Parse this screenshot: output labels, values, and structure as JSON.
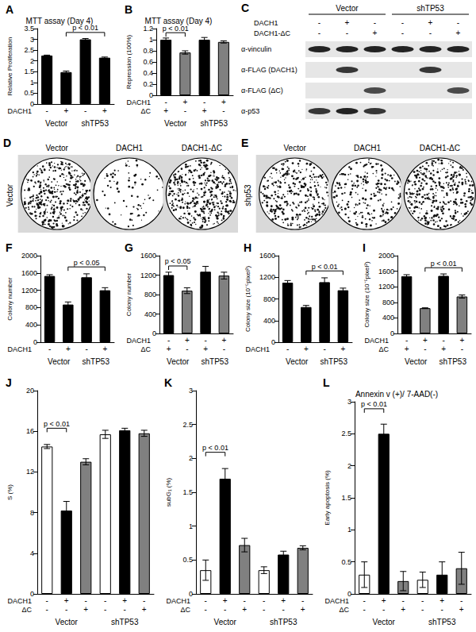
{
  "chart_data": [
    {
      "type": "bar",
      "title": "A",
      "subtitle": "MTT assay (Day 4)",
      "ylabel": "Relative Proliferation",
      "x_rows": [
        {
          "label": "DACH1",
          "values": [
            "-",
            "+",
            "-",
            "+"
          ]
        }
      ],
      "groups": [
        "Vector",
        "shTP53"
      ],
      "values": [
        2.25,
        1.48,
        3.0,
        2.15
      ],
      "errors": [
        0.02,
        0.05,
        0.04,
        0.03
      ],
      "colors": [
        "#000000",
        "#000000",
        "#000000",
        "#000000"
      ],
      "ylim": [
        0,
        3.5
      ],
      "yticks": [
        0,
        0.5,
        1,
        1.5,
        2,
        2.5,
        3,
        3.5
      ],
      "annotations": [
        {
          "text": "p < 0.01",
          "from": 1,
          "to": 3
        }
      ]
    },
    {
      "type": "bar",
      "title": "B",
      "subtitle": "MTT assay (Day 4)",
      "ylabel": "Repression (100%)",
      "x_rows": [
        {
          "label": "DACH1",
          "values": [
            "-",
            "+",
            "-",
            "+"
          ]
        },
        {
          "label": "ΔC",
          "values": [
            "+",
            "-",
            "+",
            "-"
          ]
        }
      ],
      "groups": [
        "Vector",
        "shTP53"
      ],
      "values": [
        1.0,
        0.77,
        1.0,
        0.96
      ],
      "errors": [
        0.03,
        0.03,
        0.04,
        0.02
      ],
      "colors": [
        "#000000",
        "#808080",
        "#000000",
        "#808080"
      ],
      "ylim": [
        0,
        1.2
      ],
      "yticks": [
        0,
        0.2,
        0.4,
        0.6,
        0.8,
        1,
        1.2
      ],
      "annotations": [
        {
          "text": "p < 0.01",
          "from": 0,
          "to": 1
        }
      ]
    },
    {
      "type": "bar",
      "title": "F",
      "ylabel": "Colony number",
      "x_rows": [
        {
          "label": "DACH1",
          "values": [
            "-",
            "+",
            "-",
            "+"
          ]
        }
      ],
      "groups": [
        "Vector",
        "shTP53"
      ],
      "values": [
        1530,
        870,
        1500,
        1200
      ],
      "errors": [
        30,
        60,
        80,
        60
      ],
      "colors": [
        "#000000",
        "#000000",
        "#000000",
        "#000000"
      ],
      "ylim": [
        0,
        2000
      ],
      "yticks": [
        0,
        400,
        800,
        1200,
        1600,
        2000
      ],
      "annotations": [
        {
          "text": "p < 0.05",
          "from": 1,
          "to": 3
        }
      ]
    },
    {
      "type": "bar",
      "title": "G",
      "ylabel": "Colony number",
      "x_rows": [
        {
          "label": "DACH1",
          "values": [
            "-",
            "+",
            "-",
            "+"
          ]
        },
        {
          "label": "ΔC",
          "values": [
            "+",
            "-",
            "+",
            "-"
          ]
        }
      ],
      "groups": [
        "Vector",
        "shTP53"
      ],
      "values": [
        1200,
        880,
        1270,
        1190
      ],
      "errors": [
        60,
        60,
        110,
        70
      ],
      "colors": [
        "#000000",
        "#808080",
        "#000000",
        "#808080"
      ],
      "ylim": [
        0,
        1600
      ],
      "yticks": [
        0,
        400,
        800,
        1200,
        1600
      ],
      "annotations": [
        {
          "text": "p < 0.05",
          "from": 0,
          "to": 1
        }
      ]
    },
    {
      "type": "bar",
      "title": "H",
      "ylabel": "Colony size (10⁻⁵pixel²)",
      "x_rows": [
        {
          "label": "DACH1",
          "values": [
            "-",
            "+",
            "-",
            "+"
          ]
        }
      ],
      "groups": [
        "Vector",
        "shTP53"
      ],
      "values": [
        1100,
        650,
        1110,
        960
      ],
      "errors": [
        40,
        30,
        80,
        40
      ],
      "colors": [
        "#000000",
        "#000000",
        "#000000",
        "#000000"
      ],
      "ylim": [
        0,
        1600
      ],
      "yticks": [
        0,
        400,
        800,
        1200,
        1600
      ],
      "annotations": [
        {
          "text": "p < 0.01",
          "from": 1,
          "to": 3
        }
      ]
    },
    {
      "type": "bar",
      "title": "I",
      "ylabel": "Colony size (10⁻⁵pixel²)",
      "x_rows": [
        {
          "label": "DACH1",
          "values": [
            "-",
            "+",
            "-",
            "+"
          ]
        },
        {
          "label": "ΔC",
          "values": [
            "+",
            "-",
            "+",
            "-"
          ]
        }
      ],
      "groups": [
        "Vector",
        "shTP53"
      ],
      "values": [
        1470,
        650,
        1480,
        950
      ],
      "errors": [
        40,
        10,
        50,
        40
      ],
      "colors": [
        "#000000",
        "#808080",
        "#000000",
        "#808080"
      ],
      "ylim": [
        0,
        2000
      ],
      "yticks": [
        0,
        400,
        800,
        1200,
        1600,
        2000
      ],
      "annotations": [
        {
          "text": "p < 0.01",
          "from": 1,
          "to": 3
        }
      ]
    },
    {
      "type": "bar",
      "title": "J",
      "ylabel": "S (%)",
      "x_rows": [
        {
          "label": "DACH1",
          "values": [
            "-",
            "+",
            "-",
            "-",
            "+",
            "-"
          ]
        },
        {
          "label": "ΔC",
          "values": [
            "-",
            "-",
            "+",
            "-",
            "-",
            "+"
          ]
        }
      ],
      "groups": [
        "Vector",
        "shTP53"
      ],
      "values": [
        14.5,
        8.2,
        13.0,
        15.7,
        16.1,
        15.8
      ],
      "errors": [
        0.2,
        0.9,
        0.3,
        0.4,
        0.2,
        0.3
      ],
      "colors": [
        "#ffffff",
        "#000000",
        "#808080",
        "#ffffff",
        "#000000",
        "#808080"
      ],
      "ylim": [
        0,
        20
      ],
      "yticks": [
        0,
        4,
        8,
        12,
        16,
        20
      ],
      "annotations": [
        {
          "text": "p < 0.01",
          "from": 0,
          "to": 1
        }
      ]
    },
    {
      "type": "bar",
      "title": "K",
      "ylabel": "subG₁ (%)",
      "x_rows": [
        {
          "label": "DACH1",
          "values": [
            "-",
            "+",
            "-",
            "-",
            "+",
            "-"
          ]
        },
        {
          "label": "ΔC",
          "values": [
            "-",
            "-",
            "+",
            "-",
            "-",
            "+"
          ]
        }
      ],
      "groups": [
        "Vector",
        "shTP53"
      ],
      "values": [
        0.35,
        1.7,
        0.72,
        0.35,
        0.58,
        0.68
      ],
      "errors": [
        0.15,
        0.15,
        0.1,
        0.05,
        0.05,
        0.03
      ],
      "colors": [
        "#ffffff",
        "#000000",
        "#808080",
        "#ffffff",
        "#000000",
        "#808080"
      ],
      "ylim": [
        0,
        3
      ],
      "yticks": [
        0,
        0.5,
        1,
        1.5,
        2,
        2.5,
        3
      ],
      "annotations": [
        {
          "text": "p < 0.01",
          "from": 0,
          "to": 1
        }
      ]
    },
    {
      "type": "bar",
      "title": "L",
      "subtitle": "Annexin v (+)/ 7-AAD(-)",
      "ylabel": "Early apoptosis (%)",
      "x_rows": [
        {
          "label": "DACH1",
          "values": [
            "-",
            "+",
            "-",
            "-",
            "+",
            "-"
          ]
        },
        {
          "label": "ΔC",
          "values": [
            "-",
            "-",
            "+",
            "-",
            "-",
            "+"
          ]
        }
      ],
      "groups": [
        "Vector",
        "shTP53"
      ],
      "values": [
        0.3,
        2.5,
        0.2,
        0.22,
        0.3,
        0.4
      ],
      "errors": [
        0.2,
        0.15,
        0.15,
        0.12,
        0.2,
        0.25
      ],
      "colors": [
        "#ffffff",
        "#000000",
        "#808080",
        "#ffffff",
        "#000000",
        "#808080"
      ],
      "ylim": [
        0,
        3
      ],
      "yticks": [
        0,
        0.5,
        1,
        1.5,
        2,
        2.5,
        3
      ],
      "annotations": [
        {
          "text": "p < 0.01",
          "from": 0,
          "to": 1
        }
      ]
    }
  ],
  "blot": {
    "title": "C",
    "groups": [
      "Vector",
      "shTP53"
    ],
    "conditions": [
      {
        "label": "DACH1",
        "values": [
          "-",
          "+",
          "-",
          "-",
          "+",
          "-"
        ]
      },
      {
        "label": "DACH1-ΔC",
        "values": [
          "-",
          "-",
          "+",
          "-",
          "-",
          "+"
        ]
      }
    ],
    "bands": [
      {
        "label": "α-vinculin",
        "intensity": [
          1,
          1,
          1,
          1,
          1,
          1
        ]
      },
      {
        "label": "α-FLAG (DACH1)",
        "intensity": [
          0,
          0.9,
          0,
          0,
          0.9,
          0
        ]
      },
      {
        "label": "α-FLAG (ΔC)",
        "intensity": [
          0,
          0,
          0.8,
          0,
          0,
          0.8
        ]
      },
      {
        "label": "α-p53",
        "intensity": [
          0.9,
          1,
          0.9,
          0,
          0,
          0
        ]
      }
    ]
  },
  "colony_plates": [
    {
      "title": "D",
      "row_label": "Vector",
      "plates": [
        {
          "label": "Vector",
          "colonies": 380
        },
        {
          "label": "DACH1",
          "colonies": 80
        },
        {
          "label": "DACH1-ΔC",
          "colonies": 420
        }
      ]
    },
    {
      "title": "E",
      "row_label": "shp53",
      "plates": [
        {
          "label": "Vector",
          "colonies": 330
        },
        {
          "label": "DACH1",
          "colonies": 220
        },
        {
          "label": "DACH1-ΔC",
          "colonies": 360
        }
      ]
    }
  ]
}
